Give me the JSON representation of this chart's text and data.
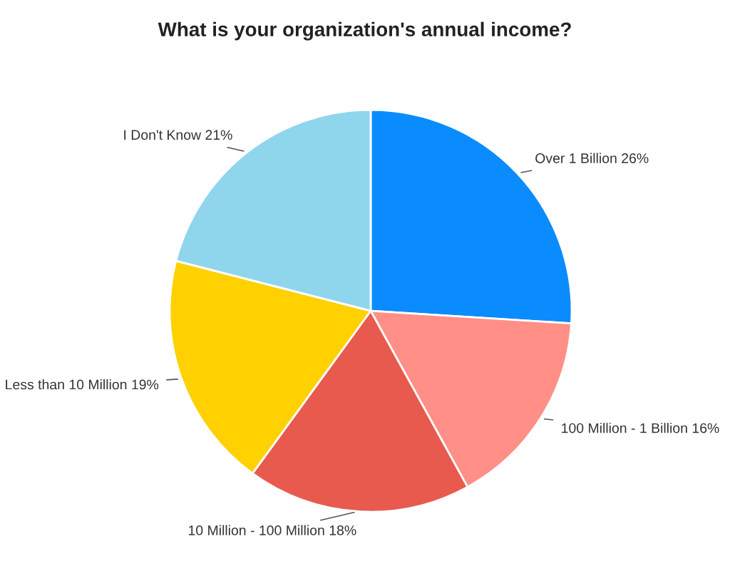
{
  "chart_data": {
    "type": "pie",
    "title": "What is your organization's annual income?",
    "categories": [
      "Over 1 Billion",
      "100 Million - 1 Billion",
      "10 Million - 100 Million",
      "Less than 10 Million",
      "I Don't Know"
    ],
    "values": [
      26,
      16,
      18,
      19,
      21
    ],
    "value_labels": [
      "26%",
      "16%",
      "18%",
      "19%",
      "21%"
    ],
    "colors": [
      "#0a8cff",
      "#ff8f87",
      "#e85a4e",
      "#ffd100",
      "#8fd6ed"
    ],
    "legend": false
  }
}
